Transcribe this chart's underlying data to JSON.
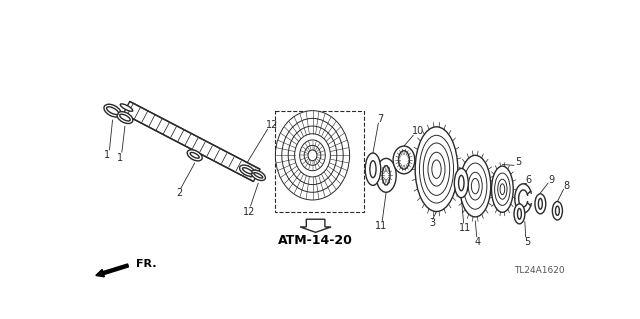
{
  "bg_color": "#ffffff",
  "part_color": "#2a2a2a",
  "atm_label": "ATM-14-20",
  "part_code": "TL24A1620",
  "fr_label": "FR."
}
